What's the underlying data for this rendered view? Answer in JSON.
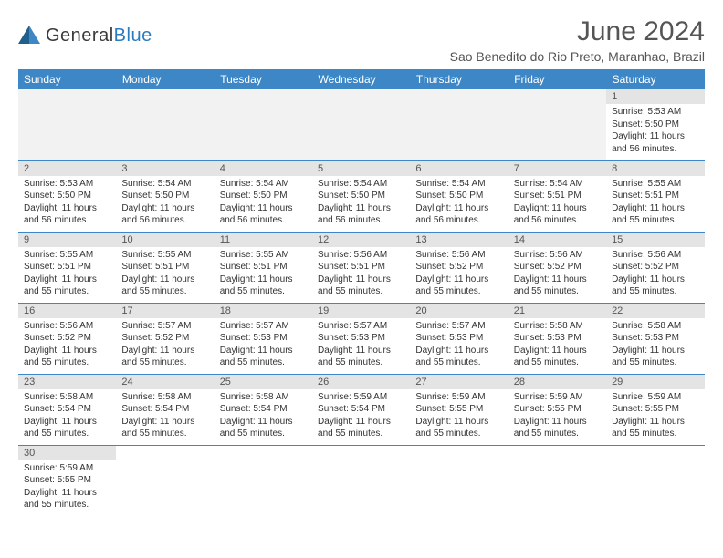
{
  "logo": {
    "word1": "General",
    "word2": "Blue"
  },
  "title": "June 2024",
  "location": "Sao Benedito do Rio Preto, Maranhao, Brazil",
  "colors": {
    "header_bg": "#3d87c7",
    "daynum_bg": "#e4e4e4",
    "border": "#3d87c7"
  },
  "dow": [
    "Sunday",
    "Monday",
    "Tuesday",
    "Wednesday",
    "Thursday",
    "Friday",
    "Saturday"
  ],
  "weeks": [
    [
      null,
      null,
      null,
      null,
      null,
      null,
      {
        "n": "1",
        "sr": "Sunrise: 5:53 AM",
        "ss": "Sunset: 5:50 PM",
        "d1": "Daylight: 11 hours",
        "d2": "and 56 minutes."
      }
    ],
    [
      {
        "n": "2",
        "sr": "Sunrise: 5:53 AM",
        "ss": "Sunset: 5:50 PM",
        "d1": "Daylight: 11 hours",
        "d2": "and 56 minutes."
      },
      {
        "n": "3",
        "sr": "Sunrise: 5:54 AM",
        "ss": "Sunset: 5:50 PM",
        "d1": "Daylight: 11 hours",
        "d2": "and 56 minutes."
      },
      {
        "n": "4",
        "sr": "Sunrise: 5:54 AM",
        "ss": "Sunset: 5:50 PM",
        "d1": "Daylight: 11 hours",
        "d2": "and 56 minutes."
      },
      {
        "n": "5",
        "sr": "Sunrise: 5:54 AM",
        "ss": "Sunset: 5:50 PM",
        "d1": "Daylight: 11 hours",
        "d2": "and 56 minutes."
      },
      {
        "n": "6",
        "sr": "Sunrise: 5:54 AM",
        "ss": "Sunset: 5:50 PM",
        "d1": "Daylight: 11 hours",
        "d2": "and 56 minutes."
      },
      {
        "n": "7",
        "sr": "Sunrise: 5:54 AM",
        "ss": "Sunset: 5:51 PM",
        "d1": "Daylight: 11 hours",
        "d2": "and 56 minutes."
      },
      {
        "n": "8",
        "sr": "Sunrise: 5:55 AM",
        "ss": "Sunset: 5:51 PM",
        "d1": "Daylight: 11 hours",
        "d2": "and 55 minutes."
      }
    ],
    [
      {
        "n": "9",
        "sr": "Sunrise: 5:55 AM",
        "ss": "Sunset: 5:51 PM",
        "d1": "Daylight: 11 hours",
        "d2": "and 55 minutes."
      },
      {
        "n": "10",
        "sr": "Sunrise: 5:55 AM",
        "ss": "Sunset: 5:51 PM",
        "d1": "Daylight: 11 hours",
        "d2": "and 55 minutes."
      },
      {
        "n": "11",
        "sr": "Sunrise: 5:55 AM",
        "ss": "Sunset: 5:51 PM",
        "d1": "Daylight: 11 hours",
        "d2": "and 55 minutes."
      },
      {
        "n": "12",
        "sr": "Sunrise: 5:56 AM",
        "ss": "Sunset: 5:51 PM",
        "d1": "Daylight: 11 hours",
        "d2": "and 55 minutes."
      },
      {
        "n": "13",
        "sr": "Sunrise: 5:56 AM",
        "ss": "Sunset: 5:52 PM",
        "d1": "Daylight: 11 hours",
        "d2": "and 55 minutes."
      },
      {
        "n": "14",
        "sr": "Sunrise: 5:56 AM",
        "ss": "Sunset: 5:52 PM",
        "d1": "Daylight: 11 hours",
        "d2": "and 55 minutes."
      },
      {
        "n": "15",
        "sr": "Sunrise: 5:56 AM",
        "ss": "Sunset: 5:52 PM",
        "d1": "Daylight: 11 hours",
        "d2": "and 55 minutes."
      }
    ],
    [
      {
        "n": "16",
        "sr": "Sunrise: 5:56 AM",
        "ss": "Sunset: 5:52 PM",
        "d1": "Daylight: 11 hours",
        "d2": "and 55 minutes."
      },
      {
        "n": "17",
        "sr": "Sunrise: 5:57 AM",
        "ss": "Sunset: 5:52 PM",
        "d1": "Daylight: 11 hours",
        "d2": "and 55 minutes."
      },
      {
        "n": "18",
        "sr": "Sunrise: 5:57 AM",
        "ss": "Sunset: 5:53 PM",
        "d1": "Daylight: 11 hours",
        "d2": "and 55 minutes."
      },
      {
        "n": "19",
        "sr": "Sunrise: 5:57 AM",
        "ss": "Sunset: 5:53 PM",
        "d1": "Daylight: 11 hours",
        "d2": "and 55 minutes."
      },
      {
        "n": "20",
        "sr": "Sunrise: 5:57 AM",
        "ss": "Sunset: 5:53 PM",
        "d1": "Daylight: 11 hours",
        "d2": "and 55 minutes."
      },
      {
        "n": "21",
        "sr": "Sunrise: 5:58 AM",
        "ss": "Sunset: 5:53 PM",
        "d1": "Daylight: 11 hours",
        "d2": "and 55 minutes."
      },
      {
        "n": "22",
        "sr": "Sunrise: 5:58 AM",
        "ss": "Sunset: 5:53 PM",
        "d1": "Daylight: 11 hours",
        "d2": "and 55 minutes."
      }
    ],
    [
      {
        "n": "23",
        "sr": "Sunrise: 5:58 AM",
        "ss": "Sunset: 5:54 PM",
        "d1": "Daylight: 11 hours",
        "d2": "and 55 minutes."
      },
      {
        "n": "24",
        "sr": "Sunrise: 5:58 AM",
        "ss": "Sunset: 5:54 PM",
        "d1": "Daylight: 11 hours",
        "d2": "and 55 minutes."
      },
      {
        "n": "25",
        "sr": "Sunrise: 5:58 AM",
        "ss": "Sunset: 5:54 PM",
        "d1": "Daylight: 11 hours",
        "d2": "and 55 minutes."
      },
      {
        "n": "26",
        "sr": "Sunrise: 5:59 AM",
        "ss": "Sunset: 5:54 PM",
        "d1": "Daylight: 11 hours",
        "d2": "and 55 minutes."
      },
      {
        "n": "27",
        "sr": "Sunrise: 5:59 AM",
        "ss": "Sunset: 5:55 PM",
        "d1": "Daylight: 11 hours",
        "d2": "and 55 minutes."
      },
      {
        "n": "28",
        "sr": "Sunrise: 5:59 AM",
        "ss": "Sunset: 5:55 PM",
        "d1": "Daylight: 11 hours",
        "d2": "and 55 minutes."
      },
      {
        "n": "29",
        "sr": "Sunrise: 5:59 AM",
        "ss": "Sunset: 5:55 PM",
        "d1": "Daylight: 11 hours",
        "d2": "and 55 minutes."
      }
    ],
    [
      {
        "n": "30",
        "sr": "Sunrise: 5:59 AM",
        "ss": "Sunset: 5:55 PM",
        "d1": "Daylight: 11 hours",
        "d2": "and 55 minutes."
      },
      null,
      null,
      null,
      null,
      null,
      null
    ]
  ]
}
